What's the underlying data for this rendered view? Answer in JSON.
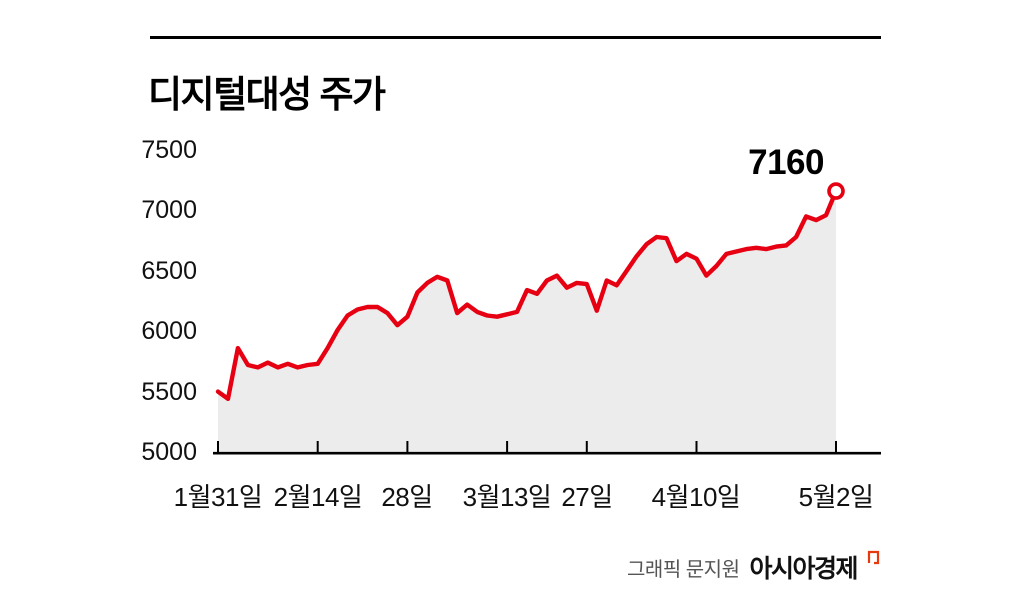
{
  "title": "디지털대성 주가",
  "annotation": {
    "label": "7160"
  },
  "footer": {
    "credit": "그래픽 문지원",
    "brand": "아시아경제"
  },
  "chart_data": {
    "type": "line",
    "title": "디지털대성 주가",
    "series_name": "주가",
    "values": [
      5500,
      5440,
      5860,
      5720,
      5700,
      5740,
      5700,
      5730,
      5700,
      5720,
      5730,
      5860,
      6010,
      6130,
      6180,
      6200,
      6200,
      6150,
      6050,
      6120,
      6320,
      6400,
      6450,
      6420,
      6150,
      6220,
      6160,
      6130,
      6120,
      6140,
      6160,
      6340,
      6310,
      6420,
      6460,
      6360,
      6400,
      6390,
      6170,
      6420,
      6380,
      6500,
      6620,
      6720,
      6780,
      6770,
      6580,
      6640,
      6600,
      6460,
      6540,
      6640,
      6660,
      6680,
      6690,
      6680,
      6700,
      6710,
      6780,
      6950,
      6920,
      6960,
      7160
    ],
    "x_tick_indices": [
      0,
      10,
      19,
      29,
      37,
      48,
      62
    ],
    "x_tick_labels": [
      "1월31일",
      "2월14일",
      "28일",
      "3월13일",
      "27일",
      "4월10일",
      "5월2일"
    ],
    "y_ticks": [
      5000,
      5500,
      6000,
      6500,
      7000,
      7500
    ],
    "ylim": [
      5000,
      7500
    ],
    "grid": false,
    "legend": false,
    "line_color": "#e60012",
    "area_color": "#ececec",
    "axis_color": "#000000",
    "last_value_label": "7160"
  }
}
